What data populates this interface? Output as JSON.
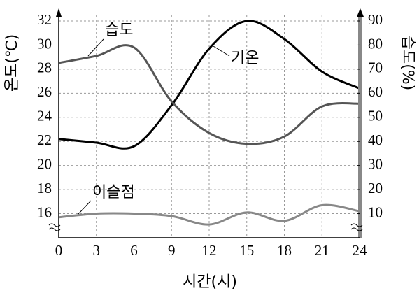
{
  "chart_data": {
    "type": "line",
    "x_label": "시간(시)",
    "y_label": "온도(℃)",
    "y2_label": "습도(%)",
    "x": [
      0,
      3,
      6,
      9,
      12,
      15,
      18,
      21,
      24
    ],
    "xlim": [
      0,
      24
    ],
    "xticks": [
      0,
      3,
      6,
      9,
      12,
      15,
      18,
      21,
      24
    ],
    "ylim": [
      14,
      32
    ],
    "yticks": [
      16,
      18,
      20,
      22,
      24,
      26,
      28,
      30,
      32
    ],
    "y2lim": [
      0,
      90
    ],
    "y2ticks": [
      10,
      20,
      30,
      40,
      50,
      60,
      70,
      80,
      90
    ],
    "grid": true,
    "series": [
      {
        "name": "기온",
        "color": "#000000",
        "values": [
          22.2,
          21.9,
          21.6,
          25,
          29.7,
          32,
          30.5,
          27.8,
          26.4
        ]
      },
      {
        "name": "습도",
        "color": "#555555",
        "axis": "y2",
        "values": [
          72.6,
          75.5,
          79,
          56.6,
          43.5,
          39,
          42,
          54.5,
          55.7
        ]
      },
      {
        "name": "이슬점",
        "color": "#888888",
        "values": [
          15.7,
          16,
          16,
          15.8,
          15.1,
          16.1,
          15.4,
          16.7,
          16.2
        ]
      }
    ]
  }
}
